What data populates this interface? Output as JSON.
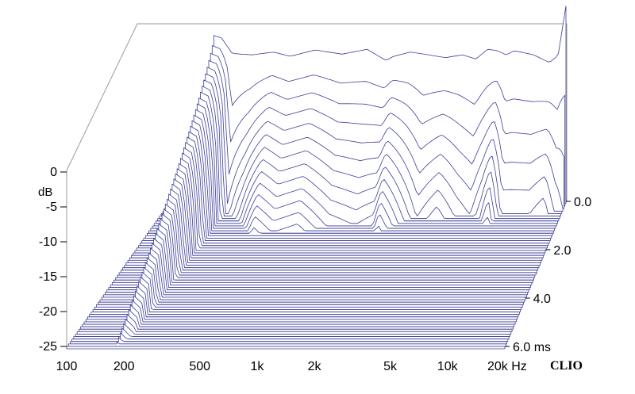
{
  "chart_data": {
    "type": "waterfall-3d",
    "ylabel": "dB",
    "y_ticks": [
      "0",
      "-5",
      "-10",
      "-15",
      "-20",
      "-25"
    ],
    "ylim": [
      -25,
      0
    ],
    "x_ticks": [
      "100",
      "200",
      "500",
      "1k",
      "2k",
      "5k",
      "10k",
      "20k Hz"
    ],
    "x_tick_freqs": [
      100,
      200,
      500,
      1000,
      2000,
      5000,
      10000,
      20000
    ],
    "x_scale": "log",
    "xlim_hz": [
      100,
      20000
    ],
    "z_ticks": [
      "0.0",
      "2.0",
      "4.0",
      "6.0 ms"
    ],
    "z_tick_ms": [
      0,
      2,
      4,
      6
    ],
    "zlim_ms": [
      0,
      6
    ],
    "slice_count": 60,
    "decay_profile": {
      "freq_hz": [
        180,
        200,
        230,
        300,
        400,
        500,
        700,
        1000,
        1400,
        1800,
        2000,
        2500,
        3000,
        4000,
        5000,
        6000,
        7000,
        8000,
        9000,
        10000,
        13000,
        16000,
        18000,
        20000
      ],
      "level_at_0ms_db": [
        -1.2,
        -1.6,
        -3.8,
        -4.0,
        -3.6,
        -4.2,
        -3.3,
        -3.9,
        -3.2,
        -4.8,
        -4.2,
        -3.6,
        -3.9,
        -4.4,
        -4.0,
        -4.6,
        -3.2,
        -3.4,
        -4.0,
        -3.4,
        -4.0,
        -5.1,
        -4.1,
        3.0
      ],
      "decay_time_ms": [
        6.0,
        5.6,
        0.4,
        0.8,
        1.4,
        1.2,
        1.3,
        1.0,
        0.9,
        1.0,
        1.3,
        0.9,
        0.6,
        0.8,
        0.6,
        0.5,
        0.7,
        1.0,
        0.5,
        0.5,
        0.5,
        0.6,
        0.4,
        0.3
      ]
    },
    "color": "#3c3d96",
    "floor_color": "#8e8fd2"
  },
  "brand": "CLIO"
}
